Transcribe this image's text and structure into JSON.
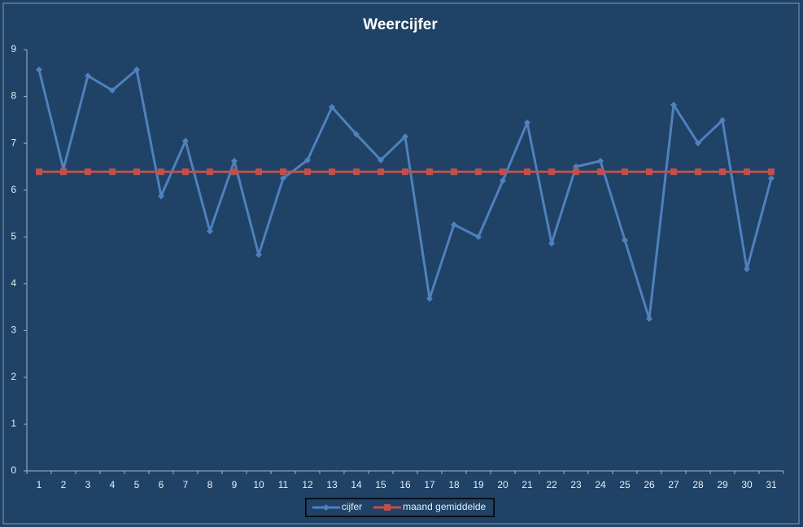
{
  "chart_data": {
    "type": "line",
    "title": "Weercijfer",
    "categories": [
      "1",
      "2",
      "3",
      "4",
      "5",
      "6",
      "7",
      "8",
      "9",
      "10",
      "11",
      "12",
      "13",
      "14",
      "15",
      "16",
      "17",
      "18",
      "19",
      "20",
      "21",
      "22",
      "23",
      "24",
      "25",
      "26",
      "27",
      "28",
      "29",
      "30",
      "31"
    ],
    "series": [
      {
        "name": "cijfer",
        "color": "#4f81bd",
        "marker": "diamond",
        "values": [
          8.57,
          6.45,
          8.44,
          8.13,
          8.57,
          5.87,
          7.05,
          5.12,
          6.62,
          4.62,
          6.25,
          6.64,
          7.77,
          7.19,
          6.64,
          7.14,
          3.68,
          5.26,
          5.0,
          6.2,
          7.44,
          4.86,
          6.5,
          6.62,
          4.93,
          3.25,
          7.82,
          7.0,
          7.49,
          4.31,
          6.25
        ]
      },
      {
        "name": "maand gemiddelde",
        "color": "#c0504d",
        "marker": "square",
        "values": [
          6.39,
          6.39,
          6.39,
          6.39,
          6.39,
          6.39,
          6.39,
          6.39,
          6.39,
          6.39,
          6.39,
          6.39,
          6.39,
          6.39,
          6.39,
          6.39,
          6.39,
          6.39,
          6.39,
          6.39,
          6.39,
          6.39,
          6.39,
          6.39,
          6.39,
          6.39,
          6.39,
          6.39,
          6.39,
          6.39,
          6.39
        ]
      }
    ],
    "ylim": [
      0,
      9
    ],
    "yticks": [
      0,
      1,
      2,
      3,
      4,
      5,
      6,
      7,
      8,
      9
    ],
    "grid": false,
    "legend": "bottom"
  }
}
